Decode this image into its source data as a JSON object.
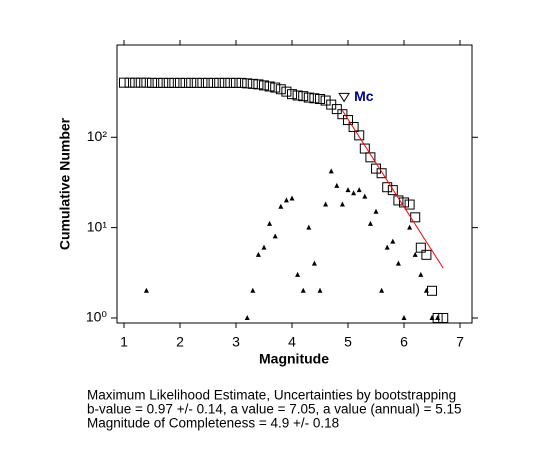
{
  "chart_data": {
    "type": "scatter",
    "xlabel": "Magnitude",
    "ylabel": "Cumulative Number",
    "xlim": [
      0.875,
      7.214
    ],
    "ylim": [
      0.88,
      1050
    ],
    "log_y": true,
    "xticks": [
      1,
      2,
      3,
      4,
      5,
      6,
      7
    ],
    "yticks": [
      {
        "value": 1,
        "label": "10⁰"
      },
      {
        "value": 10,
        "label": "10¹"
      },
      {
        "value": 100,
        "label": "10²"
      }
    ],
    "series": [
      {
        "marker": "square",
        "color": "#000000",
        "x": [
          1.0,
          1.1,
          1.2,
          1.3,
          1.4,
          1.5,
          1.6,
          1.7,
          1.8,
          1.9,
          2.0,
          2.1,
          2.2,
          2.3,
          2.4,
          2.5,
          2.6,
          2.7,
          2.8,
          2.9,
          3.0,
          3.1,
          3.2,
          3.3,
          3.4,
          3.5,
          3.6,
          3.7,
          3.8,
          3.9,
          4.0,
          4.1,
          4.2,
          4.3,
          4.4,
          4.5,
          4.6,
          4.7,
          4.8,
          4.9,
          5.0,
          5.1,
          5.2,
          5.3,
          5.4,
          5.5,
          5.6,
          5.7,
          5.8,
          5.9,
          6.0,
          6.1,
          6.2,
          6.3,
          6.4,
          6.5,
          6.6,
          6.7
        ],
        "values": [
          402,
          402,
          402,
          402,
          402,
          400,
          400,
          400,
          400,
          400,
          400,
          400,
          400,
          400,
          400,
          400,
          400,
          400,
          400,
          400,
          400,
          400,
          395,
          390,
          385,
          375,
          365,
          355,
          340,
          320,
          300,
          290,
          285,
          275,
          270,
          265,
          255,
          230,
          205,
          180,
          155,
          130,
          105,
          75,
          60,
          45,
          40,
          28,
          26,
          20,
          19,
          18,
          13,
          6,
          5,
          2,
          1,
          1
        ]
      },
      {
        "marker": "triangle",
        "color": "#000000",
        "x": [
          1.4,
          3.2,
          3.3,
          3.4,
          3.5,
          3.6,
          3.7,
          3.8,
          3.9,
          4.0,
          4.1,
          4.2,
          4.3,
          4.4,
          4.5,
          4.6,
          4.7,
          4.8,
          4.9,
          5.0,
          5.1,
          5.2,
          5.3,
          5.4,
          5.5,
          5.6,
          5.7,
          5.8,
          5.9,
          6.0,
          6.1,
          6.2,
          6.3,
          6.4,
          6.5,
          6.6
        ],
        "values": [
          2,
          1,
          2,
          5,
          6,
          11,
          8,
          17,
          20,
          21,
          3,
          2,
          10,
          4,
          2,
          18,
          42,
          29,
          18,
          26,
          24,
          26,
          22,
          11,
          15,
          2,
          6,
          7,
          4,
          1,
          10,
          5,
          3,
          2,
          1,
          1
        ]
      },
      {
        "marker": "line",
        "color": "#ff0000",
        "x": [
          4.9,
          6.7
        ],
        "values": [
          198,
          3.56
        ]
      }
    ],
    "annotation": {
      "text": "Mc",
      "x": 4.93,
      "y": 276,
      "color": "#00008b"
    },
    "info_lines": [
      "Maximum Likelihood Estimate, Uncertainties by bootstrapping",
      "b-value = 0.97 +/- 0.14,  a value = 7.05,  a value (annual) = 5.15",
      "Magnitude of Completeness = 4.9 +/- 0.18"
    ]
  }
}
